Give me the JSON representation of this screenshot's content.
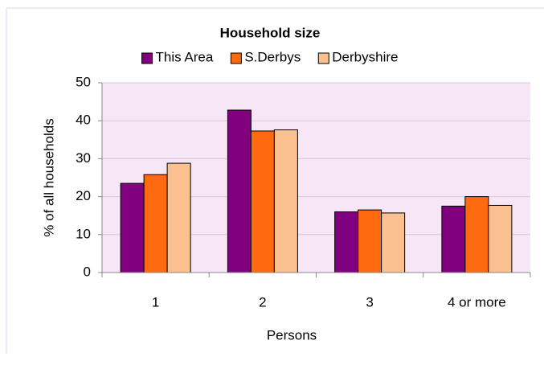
{
  "chart_data": {
    "type": "bar",
    "title": "Household size",
    "x_label": "Persons",
    "y_label": "% of all households",
    "categories": [
      "1",
      "2",
      "3",
      "4 or more"
    ],
    "series": [
      {
        "name": "This Area",
        "color": "#800080",
        "values": [
          23.5,
          42.8,
          16,
          17.5
        ]
      },
      {
        "name": "S.Derbys",
        "color": "#ff6a10",
        "values": [
          25.8,
          37.3,
          16.5,
          20
        ]
      },
      {
        "name": "Derbyshire",
        "color": "#fac090",
        "values": [
          28.8,
          37.6,
          15.7,
          17.7
        ]
      }
    ],
    "ylim": [
      0,
      50
    ],
    "yticks": [
      0,
      10,
      20,
      30,
      40,
      50
    ],
    "grid": true
  }
}
